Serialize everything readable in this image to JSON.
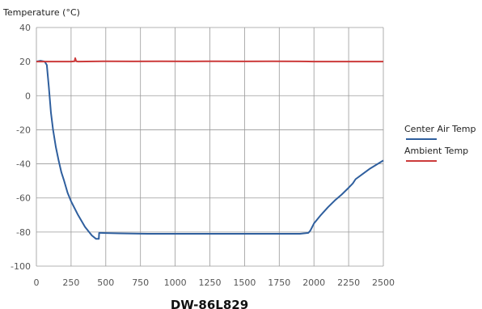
{
  "chart_data": {
    "type": "line",
    "title": "",
    "caption": "DW-86L829",
    "xlabel": "",
    "ylabel": "Temperature (°C)",
    "xlim": [
      0,
      2500
    ],
    "ylim": [
      -100,
      40
    ],
    "xticks": [
      0,
      250,
      500,
      750,
      1000,
      1250,
      1500,
      1750,
      2000,
      2250,
      2500
    ],
    "yticks": [
      40,
      20,
      0,
      -20,
      -40,
      -60,
      -80,
      -100
    ],
    "grid": true,
    "legend_position": "right",
    "series": [
      {
        "name": "Center Air Temp",
        "color": "#2f5f9e",
        "x": [
          0,
          30,
          60,
          75,
          90,
          105,
          120,
          140,
          160,
          180,
          200,
          225,
          250,
          300,
          350,
          400,
          430,
          450,
          452,
          460,
          600,
          800,
          1000,
          1200,
          1400,
          1600,
          1800,
          1900,
          1960,
          1975,
          2000,
          2050,
          2100,
          2150,
          2200,
          2250,
          2280,
          2300,
          2350,
          2400,
          2450,
          2500
        ],
        "y": [
          20,
          20.5,
          20,
          18,
          5,
          -10,
          -20,
          -30,
          -38,
          -45,
          -50,
          -57,
          -62,
          -70,
          -77,
          -82,
          -84,
          -84,
          -80.5,
          -80.5,
          -80.8,
          -81,
          -81,
          -81,
          -81,
          -81,
          -81,
          -81,
          -80.5,
          -79,
          -75,
          -70,
          -65.5,
          -61.5,
          -58,
          -54,
          -51.5,
          -49,
          -46,
          -43,
          -40.5,
          -38
        ]
      },
      {
        "name": "Ambient Temp",
        "color": "#cc3a3a",
        "x": [
          0,
          250,
          275,
          280,
          285,
          290,
          300,
          500,
          700,
          900,
          1100,
          1300,
          1500,
          1700,
          1900,
          2000,
          2250,
          2500
        ],
        "y": [
          20,
          20,
          20.2,
          22,
          20.6,
          20.1,
          20,
          20.2,
          20.1,
          20.2,
          20.1,
          20.2,
          20.1,
          20.2,
          20.1,
          20,
          20,
          20
        ]
      }
    ]
  },
  "colors": {
    "grid": "#9a9a9a",
    "axis": "#666666"
  }
}
